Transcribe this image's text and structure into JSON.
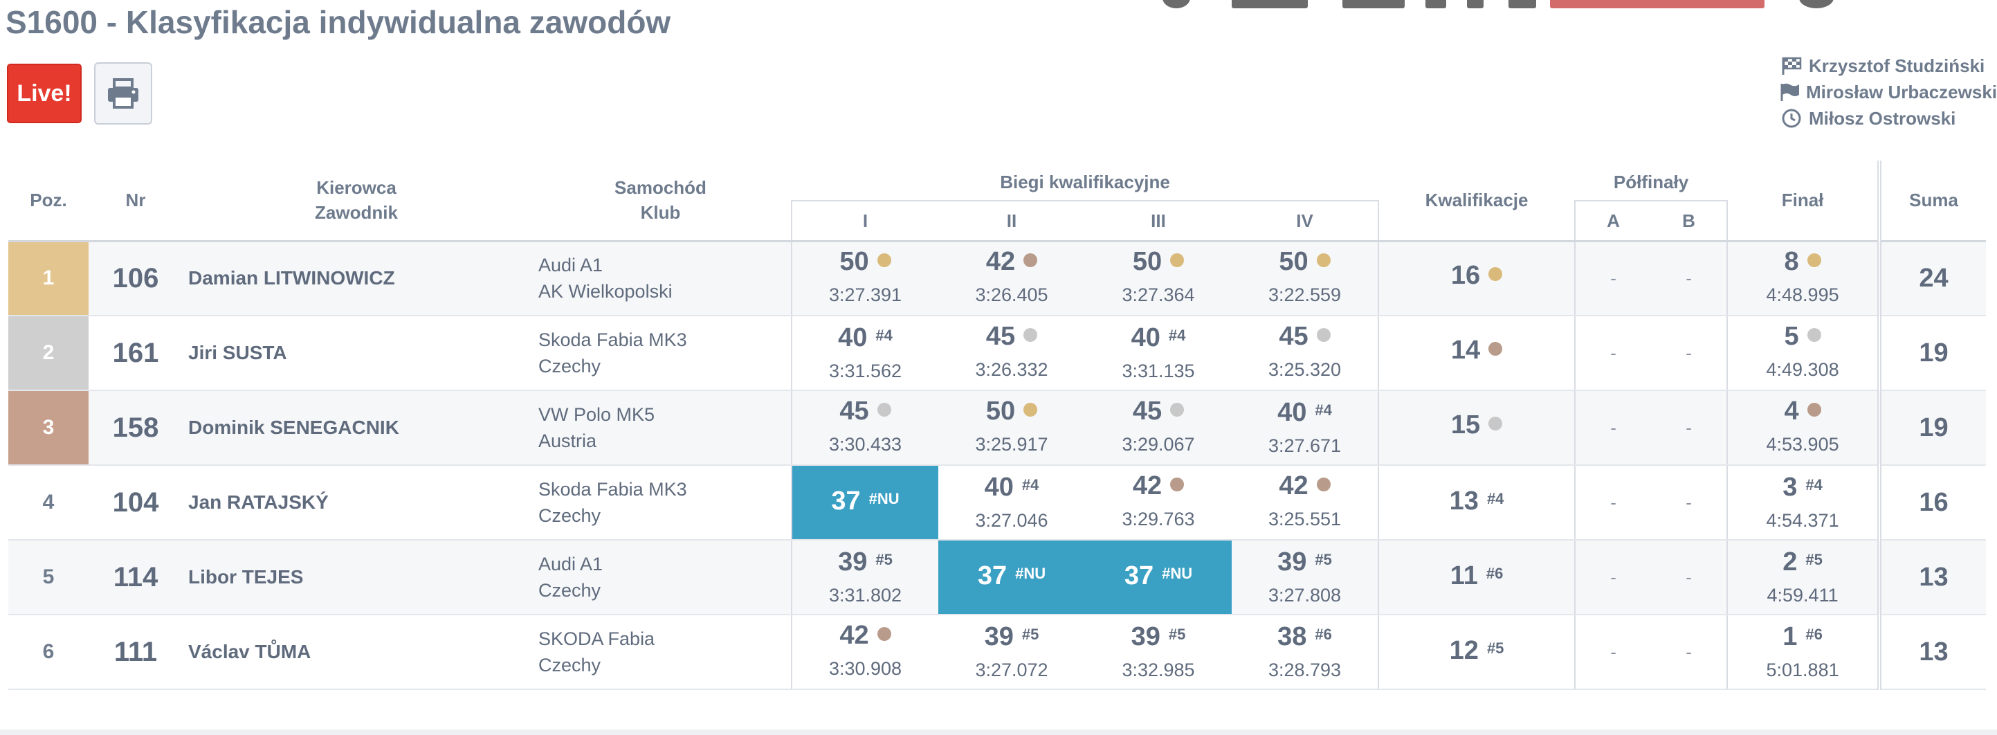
{
  "page": {
    "title": "S1600 - Klasyfikacja indywidualna zawodów",
    "live_button": "Live!",
    "print_icon": "print-icon"
  },
  "officials": [
    {
      "icon": "checkered-flag-icon",
      "name": "Krzysztof Studziński"
    },
    {
      "icon": "flag-icon",
      "name": "Mirosław Urbaczewski"
    },
    {
      "icon": "clock-icon",
      "name": "Miłosz Ostrowski"
    }
  ],
  "table": {
    "headers": {
      "pos": "Poz.",
      "nr": "Nr",
      "driver1": "Kierowca",
      "driver2": "Zawodnik",
      "car1": "Samochód",
      "car2": "Klub",
      "heats": "Biegi kwalifikacyjne",
      "heat_cols": [
        "I",
        "II",
        "III",
        "IV"
      ],
      "qual": "Kwalifikacje",
      "semis": "Półfinały",
      "semi_cols": [
        "A",
        "B"
      ],
      "final": "Finał",
      "sum": "Suma"
    },
    "colors": {
      "gold": "#e3c58f",
      "silver": "#cfcfcf",
      "bronze": "#c6a08c",
      "nu": "#3aa0c4",
      "live": "#e63a2e"
    },
    "rows": [
      {
        "pos": "1",
        "nr": "106",
        "name": "Damian LITWINOWICZ",
        "car": "Audi A1",
        "club": "AK Wielkopolski",
        "heats": [
          {
            "pts": "50",
            "mark": "gold",
            "time": "3:27.391"
          },
          {
            "pts": "42",
            "mark": "bronze",
            "time": "3:26.405"
          },
          {
            "pts": "50",
            "mark": "gold",
            "time": "3:27.364"
          },
          {
            "pts": "50",
            "mark": "gold",
            "time": "3:22.559"
          }
        ],
        "qual": {
          "pts": "16",
          "mark": "gold"
        },
        "semi_a": "-",
        "semi_b": "-",
        "final": {
          "pts": "8",
          "mark": "gold",
          "time": "4:48.995"
        },
        "sum": "24"
      },
      {
        "pos": "2",
        "nr": "161",
        "name": "Jiri SUSTA",
        "car": "Skoda Fabia MK3",
        "club": "Czechy",
        "heats": [
          {
            "pts": "40",
            "rank": "#4",
            "time": "3:31.562"
          },
          {
            "pts": "45",
            "mark": "silver",
            "time": "3:26.332"
          },
          {
            "pts": "40",
            "rank": "#4",
            "time": "3:31.135"
          },
          {
            "pts": "45",
            "mark": "silver",
            "time": "3:25.320"
          }
        ],
        "qual": {
          "pts": "14",
          "mark": "bronze"
        },
        "semi_a": "-",
        "semi_b": "-",
        "final": {
          "pts": "5",
          "mark": "silver",
          "time": "4:49.308"
        },
        "sum": "19"
      },
      {
        "pos": "3",
        "nr": "158",
        "name": "Dominik SENEGACNIK",
        "car": "VW Polo MK5",
        "club": "Austria",
        "heats": [
          {
            "pts": "45",
            "mark": "silver",
            "time": "3:30.433"
          },
          {
            "pts": "50",
            "mark": "gold",
            "time": "3:25.917"
          },
          {
            "pts": "45",
            "mark": "silver",
            "time": "3:29.067"
          },
          {
            "pts": "40",
            "rank": "#4",
            "time": "3:27.671"
          }
        ],
        "qual": {
          "pts": "15",
          "mark": "silver"
        },
        "semi_a": "-",
        "semi_b": "-",
        "final": {
          "pts": "4",
          "mark": "bronze",
          "time": "4:53.905"
        },
        "sum": "19"
      },
      {
        "pos": "4",
        "nr": "104",
        "name": "Jan RATAJSKÝ",
        "car": "Skoda Fabia MK3",
        "club": "Czechy",
        "heats": [
          {
            "pts": "37",
            "rank": "#NU",
            "nu": true
          },
          {
            "pts": "40",
            "rank": "#4",
            "time": "3:27.046"
          },
          {
            "pts": "42",
            "mark": "bronze",
            "time": "3:29.763"
          },
          {
            "pts": "42",
            "mark": "bronze",
            "time": "3:25.551"
          }
        ],
        "qual": {
          "pts": "13",
          "rank": "#4"
        },
        "semi_a": "-",
        "semi_b": "-",
        "final": {
          "pts": "3",
          "rank": "#4",
          "time": "4:54.371"
        },
        "sum": "16"
      },
      {
        "pos": "5",
        "nr": "114",
        "name": "Libor TEJES",
        "car": "Audi A1",
        "club": "Czechy",
        "heats": [
          {
            "pts": "39",
            "rank": "#5",
            "time": "3:31.802"
          },
          {
            "pts": "37",
            "rank": "#NU",
            "nu": true
          },
          {
            "pts": "37",
            "rank": "#NU",
            "nu": true
          },
          {
            "pts": "39",
            "rank": "#5",
            "time": "3:27.808"
          }
        ],
        "qual": {
          "pts": "11",
          "rank": "#6"
        },
        "semi_a": "-",
        "semi_b": "-",
        "final": {
          "pts": "2",
          "rank": "#5",
          "time": "4:59.411"
        },
        "sum": "13"
      },
      {
        "pos": "6",
        "nr": "111",
        "name": "Václav TŮMA",
        "car": "SKODA Fabia",
        "club": "Czechy",
        "heats": [
          {
            "pts": "42",
            "mark": "bronze",
            "time": "3:30.908"
          },
          {
            "pts": "39",
            "rank": "#5",
            "time": "3:27.072"
          },
          {
            "pts": "39",
            "rank": "#5",
            "time": "3:32.985"
          },
          {
            "pts": "38",
            "rank": "#6",
            "time": "3:28.793"
          }
        ],
        "qual": {
          "pts": "12",
          "rank": "#5"
        },
        "semi_a": "-",
        "semi_b": "-",
        "final": {
          "pts": "1",
          "rank": "#6",
          "time": "5:01.881"
        },
        "sum": "13"
      }
    ]
  }
}
